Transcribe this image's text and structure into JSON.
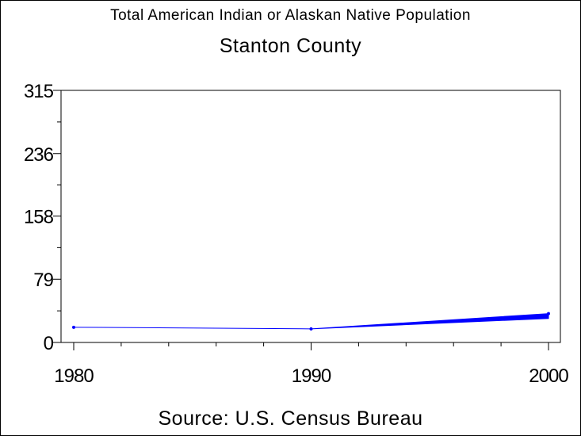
{
  "title": "Total American Indian or Alaskan Native Population",
  "subtitle": "Stanton County",
  "source": "Source: U.S. Census Bureau",
  "colors": {
    "series": "#0000ff",
    "axis": "#000000"
  },
  "chart_data": {
    "type": "line",
    "title": "Total American Indian or Alaskan Native Population",
    "subtitle": "Stanton County",
    "x": [
      1980,
      1990,
      2000
    ],
    "x_tick_labels": [
      "1980",
      "1990",
      "2000"
    ],
    "xlim": [
      1980,
      2000
    ],
    "ylim": [
      0,
      315
    ],
    "y_ticks": [
      0,
      79,
      158,
      236,
      315
    ],
    "y_tick_labels": [
      "0",
      "79",
      "158",
      "236",
      "315"
    ],
    "series": [
      {
        "values": [
          19,
          17,
          36
        ]
      }
    ],
    "series_2000_range": [
      30,
      36
    ],
    "grid": false,
    "legend": "none"
  }
}
